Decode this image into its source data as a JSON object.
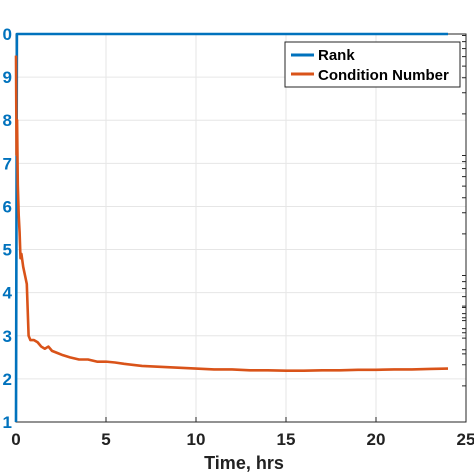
{
  "chart_data": {
    "type": "line",
    "xlabel": "Time, hrs",
    "ylabel": "",
    "xlim": [
      0,
      25
    ],
    "ylim_left": [
      1,
      10
    ],
    "x_ticks": [
      "0",
      "5",
      "10",
      "15",
      "20",
      "25"
    ],
    "y_ticks_left": [
      "1",
      "2",
      "3",
      "4",
      "5",
      "6",
      "7",
      "8",
      "9",
      "0"
    ],
    "grid": true,
    "legend_position": "top-right",
    "series": [
      {
        "name": "Rank",
        "color": "#0072BD",
        "axis": "left",
        "x": [
          0.0,
          0.05,
          0.08,
          1,
          5,
          10,
          15,
          20,
          24
        ],
        "y": [
          1.0,
          10.0,
          10.0,
          10,
          10,
          10,
          10,
          10,
          10
        ]
      },
      {
        "name": "Condition Number",
        "color": "#D95319",
        "axis": "left",
        "x": [
          0.0,
          0.03,
          0.06,
          0.1,
          0.15,
          0.2,
          0.25,
          0.3,
          0.4,
          0.5,
          0.6,
          0.7,
          0.8,
          1.0,
          1.2,
          1.4,
          1.6,
          1.8,
          2.0,
          2.3,
          2.6,
          3.0,
          3.5,
          4.0,
          4.5,
          5.0,
          5.5,
          6.0,
          7.0,
          8.0,
          9.0,
          10.0,
          11.0,
          12.0,
          13.0,
          14.0,
          15.0,
          16.0,
          17.0,
          18.0,
          19.0,
          20.0,
          21.0,
          22.0,
          23.0,
          24.0
        ],
        "y": [
          9.5,
          7.2,
          8.0,
          6.5,
          5.8,
          5.4,
          4.8,
          4.9,
          4.6,
          4.4,
          4.2,
          3.0,
          2.9,
          2.9,
          2.85,
          2.75,
          2.7,
          2.75,
          2.65,
          2.6,
          2.55,
          2.5,
          2.45,
          2.45,
          2.4,
          2.4,
          2.38,
          2.35,
          2.3,
          2.28,
          2.26,
          2.24,
          2.22,
          2.22,
          2.2,
          2.2,
          2.19,
          2.19,
          2.2,
          2.2,
          2.21,
          2.21,
          2.22,
          2.22,
          2.23,
          2.24
        ]
      }
    ]
  }
}
